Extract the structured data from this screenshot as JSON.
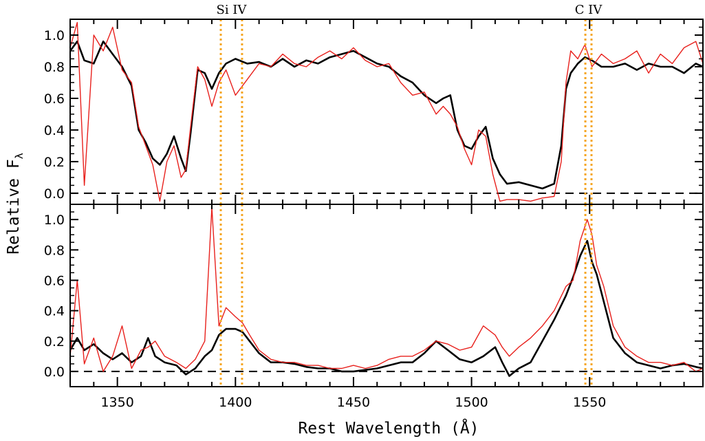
{
  "chart_data": {
    "type": "line",
    "xlabel": "Rest Wavelength (Å)",
    "ylabel": "Relative F",
    "ylabel_subscript": "λ",
    "xlim": [
      1330,
      1598
    ],
    "x_ticks": [
      1350,
      1400,
      1450,
      1500,
      1550
    ],
    "reference_lines": [
      {
        "label": "Si IV",
        "x": [
          1393.8,
          1402.8
        ],
        "color": "#f5a623"
      },
      {
        "label": "C IV",
        "x": [
          1548.2,
          1550.8
        ],
        "color": "#f5a623"
      }
    ],
    "zero_line": 0,
    "panels": [
      {
        "id": "top",
        "ylim": [
          -0.07,
          1.1
        ],
        "y_ticks": [
          0.0,
          0.2,
          0.4,
          0.6,
          0.8,
          1.0
        ],
        "y_tick_labels": [
          "0.0",
          "0.2",
          "0.4",
          "0.6",
          "0.8",
          "1.0"
        ],
        "series": [
          {
            "color": "#000000",
            "x": [
              1330,
              1333,
              1336,
              1340,
              1344,
              1348,
              1352,
              1356,
              1359,
              1362,
              1365,
              1368,
              1371,
              1374,
              1377,
              1379,
              1381,
              1384,
              1387,
              1390,
              1393,
              1396,
              1400,
              1405,
              1410,
              1415,
              1420,
              1425,
              1430,
              1435,
              1440,
              1445,
              1450,
              1455,
              1460,
              1465,
              1470,
              1475,
              1480,
              1485,
              1488,
              1491,
              1494,
              1497,
              1500,
              1503,
              1506,
              1509,
              1512,
              1515,
              1520,
              1525,
              1530,
              1535,
              1538,
              1540,
              1542,
              1545,
              1548,
              1551,
              1555,
              1560,
              1565,
              1570,
              1575,
              1580,
              1585,
              1590,
              1595,
              1598
            ],
            "y": [
              0.9,
              0.96,
              0.84,
              0.82,
              0.96,
              0.88,
              0.8,
              0.68,
              0.4,
              0.32,
              0.22,
              0.18,
              0.25,
              0.36,
              0.22,
              0.14,
              0.38,
              0.78,
              0.76,
              0.66,
              0.76,
              0.82,
              0.85,
              0.82,
              0.83,
              0.8,
              0.85,
              0.8,
              0.84,
              0.82,
              0.86,
              0.88,
              0.9,
              0.86,
              0.82,
              0.8,
              0.74,
              0.7,
              0.62,
              0.57,
              0.6,
              0.62,
              0.4,
              0.3,
              0.28,
              0.36,
              0.42,
              0.22,
              0.12,
              0.06,
              0.07,
              0.05,
              0.03,
              0.06,
              0.3,
              0.66,
              0.76,
              0.82,
              0.86,
              0.84,
              0.8,
              0.8,
              0.82,
              0.78,
              0.82,
              0.8,
              0.8,
              0.76,
              0.82,
              0.8
            ]
          },
          {
            "color": "#e8201c",
            "x": [
              1330,
              1333,
              1336,
              1340,
              1344,
              1348,
              1352,
              1356,
              1359,
              1362,
              1365,
              1368,
              1371,
              1374,
              1377,
              1379,
              1381,
              1384,
              1387,
              1390,
              1393,
              1396,
              1400,
              1405,
              1410,
              1415,
              1420,
              1425,
              1430,
              1435,
              1440,
              1445,
              1450,
              1455,
              1460,
              1465,
              1470,
              1475,
              1480,
              1485,
              1488,
              1491,
              1494,
              1497,
              1500,
              1503,
              1506,
              1509,
              1512,
              1515,
              1520,
              1525,
              1530,
              1535,
              1538,
              1540,
              1542,
              1545,
              1548,
              1551,
              1555,
              1560,
              1565,
              1570,
              1575,
              1580,
              1585,
              1590,
              1595,
              1598
            ],
            "y": [
              0.92,
              1.08,
              0.05,
              1.0,
              0.9,
              1.05,
              0.78,
              0.7,
              0.42,
              0.3,
              0.18,
              -0.05,
              0.2,
              0.3,
              0.1,
              0.15,
              0.42,
              0.8,
              0.72,
              0.55,
              0.7,
              0.78,
              0.62,
              0.72,
              0.82,
              0.8,
              0.88,
              0.82,
              0.8,
              0.86,
              0.9,
              0.85,
              0.92,
              0.84,
              0.8,
              0.82,
              0.7,
              0.62,
              0.64,
              0.5,
              0.55,
              0.5,
              0.42,
              0.28,
              0.18,
              0.4,
              0.36,
              0.12,
              -0.05,
              -0.04,
              -0.04,
              -0.05,
              -0.03,
              -0.02,
              0.2,
              0.7,
              0.9,
              0.85,
              0.94,
              0.8,
              0.88,
              0.82,
              0.85,
              0.9,
              0.76,
              0.88,
              0.82,
              0.92,
              0.96,
              0.82
            ]
          }
        ]
      },
      {
        "id": "bottom",
        "ylim": [
          -0.1,
          1.1
        ],
        "y_ticks": [
          0.0,
          0.2,
          0.4,
          0.6,
          0.8,
          1.0
        ],
        "y_tick_labels": [
          "0.0",
          "0.2",
          "0.4",
          "0.6",
          "0.8",
          "1.0"
        ],
        "series": [
          {
            "color": "#000000",
            "x": [
              1330,
              1333,
              1336,
              1340,
              1344,
              1348,
              1352,
              1356,
              1360,
              1363,
              1366,
              1370,
              1375,
              1379,
              1383,
              1387,
              1390,
              1393,
              1396,
              1400,
              1403,
              1406,
              1410,
              1415,
              1420,
              1425,
              1430,
              1435,
              1440,
              1445,
              1450,
              1455,
              1460,
              1465,
              1470,
              1475,
              1480,
              1485,
              1490,
              1495,
              1500,
              1505,
              1510,
              1513,
              1516,
              1520,
              1525,
              1530,
              1535,
              1540,
              1543,
              1546,
              1549,
              1551,
              1553,
              1556,
              1560,
              1565,
              1570,
              1575,
              1580,
              1585,
              1590,
              1595,
              1598
            ],
            "y": [
              0.14,
              0.22,
              0.14,
              0.18,
              0.12,
              0.08,
              0.12,
              0.06,
              0.1,
              0.22,
              0.1,
              0.06,
              0.04,
              -0.02,
              0.02,
              0.1,
              0.14,
              0.24,
              0.28,
              0.28,
              0.26,
              0.2,
              0.12,
              0.06,
              0.06,
              0.05,
              0.03,
              0.02,
              0.02,
              0.0,
              0.0,
              0.01,
              0.02,
              0.04,
              0.06,
              0.06,
              0.12,
              0.2,
              0.14,
              0.08,
              0.06,
              0.1,
              0.16,
              0.06,
              -0.03,
              0.02,
              0.06,
              0.2,
              0.34,
              0.5,
              0.62,
              0.76,
              0.86,
              0.72,
              0.64,
              0.46,
              0.22,
              0.12,
              0.06,
              0.04,
              0.02,
              0.04,
              0.05,
              0.03,
              0.02
            ]
          },
          {
            "color": "#e8201c",
            "x": [
              1330,
              1333,
              1336,
              1340,
              1344,
              1348,
              1352,
              1356,
              1360,
              1363,
              1366,
              1370,
              1375,
              1379,
              1383,
              1387,
              1390,
              1393,
              1396,
              1400,
              1403,
              1406,
              1410,
              1415,
              1420,
              1425,
              1430,
              1435,
              1440,
              1445,
              1450,
              1455,
              1460,
              1465,
              1470,
              1475,
              1480,
              1485,
              1490,
              1495,
              1500,
              1505,
              1510,
              1513,
              1516,
              1520,
              1525,
              1530,
              1535,
              1540,
              1543,
              1546,
              1549,
              1551,
              1553,
              1556,
              1560,
              1565,
              1570,
              1575,
              1580,
              1585,
              1590,
              1595,
              1598
            ],
            "y": [
              0.1,
              0.6,
              0.05,
              0.22,
              0.0,
              0.1,
              0.3,
              0.02,
              0.14,
              0.16,
              0.2,
              0.1,
              0.06,
              0.02,
              0.08,
              0.2,
              1.08,
              0.3,
              0.42,
              0.36,
              0.32,
              0.24,
              0.14,
              0.08,
              0.06,
              0.06,
              0.04,
              0.04,
              0.02,
              0.02,
              0.04,
              0.02,
              0.04,
              0.08,
              0.1,
              0.1,
              0.14,
              0.2,
              0.18,
              0.14,
              0.16,
              0.3,
              0.24,
              0.16,
              0.1,
              0.16,
              0.22,
              0.3,
              0.4,
              0.56,
              0.6,
              0.86,
              1.0,
              0.9,
              0.7,
              0.56,
              0.3,
              0.16,
              0.1,
              0.06,
              0.06,
              0.04,
              0.06,
              0.0,
              0.02
            ]
          }
        ]
      }
    ],
    "grid": false,
    "legend": "none"
  }
}
